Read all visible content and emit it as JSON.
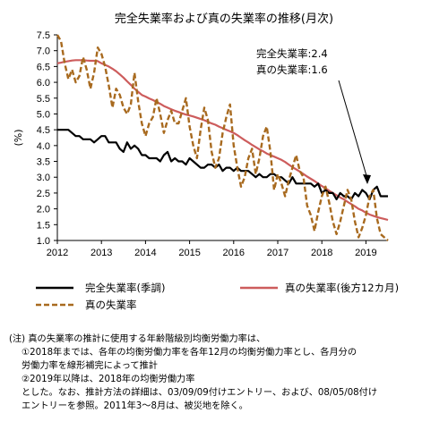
{
  "chart_data": {
    "type": "line",
    "title": "完全失業率および真の失業率の推移(月次)",
    "ylabel": "(%)",
    "ylim": [
      1.0,
      7.5
    ],
    "yticks": [
      "7.5",
      "7.0",
      "6.5",
      "6.0",
      "5.5",
      "5.0",
      "4.5",
      "4.0",
      "3.5",
      "3.0",
      "2.5",
      "2.0",
      "1.5",
      "1.0"
    ],
    "xlim": [
      "2012-01",
      "2019-07"
    ],
    "xticks": [
      "2012",
      "2013",
      "2014",
      "2015",
      "2016",
      "2017",
      "2018",
      "2019"
    ],
    "grid": false,
    "legend_position": "bottom",
    "series": [
      {
        "name": "完全失業率(季調)",
        "color": "#000000",
        "style": "solid",
        "x_start": "2012-01",
        "values": [
          4.5,
          4.5,
          4.5,
          4.5,
          4.4,
          4.3,
          4.3,
          4.2,
          4.2,
          4.2,
          4.1,
          4.2,
          4.3,
          4.3,
          4.1,
          4.1,
          4.1,
          3.9,
          3.8,
          4.1,
          3.9,
          4.0,
          3.9,
          3.7,
          3.7,
          3.6,
          3.6,
          3.6,
          3.5,
          3.7,
          3.8,
          3.5,
          3.6,
          3.5,
          3.5,
          3.4,
          3.6,
          3.5,
          3.4,
          3.3,
          3.3,
          3.4,
          3.4,
          3.3,
          3.4,
          3.2,
          3.3,
          3.3,
          3.2,
          3.3,
          3.2,
          3.2,
          3.2,
          3.1,
          3.0,
          3.1,
          3.0,
          3.0,
          3.1,
          3.1,
          3.0,
          3.0,
          2.9,
          2.8,
          3.0,
          2.8,
          2.8,
          2.8,
          2.8,
          2.8,
          2.7,
          2.8,
          2.5,
          2.6,
          2.5,
          2.5,
          2.3,
          2.5,
          2.4,
          2.4,
          2.3,
          2.5,
          2.4,
          2.6,
          2.5,
          2.3,
          2.6,
          2.7,
          2.4,
          2.4,
          2.4
        ]
      },
      {
        "name": "真の失業率(後方12カ月)",
        "color": "#cd5c5c",
        "style": "solid",
        "x_start": "2012-01",
        "values": [
          6.6,
          6.62,
          6.65,
          6.67,
          6.69,
          6.7,
          6.7,
          6.7,
          6.69,
          6.68,
          6.68,
          6.67,
          6.6,
          6.55,
          6.5,
          6.43,
          6.35,
          6.25,
          6.15,
          6.03,
          5.92,
          5.8,
          5.7,
          5.6,
          5.55,
          5.49,
          5.44,
          5.38,
          5.32,
          5.25,
          5.2,
          5.15,
          5.1,
          5.06,
          5.02,
          4.98,
          4.95,
          4.92,
          4.88,
          4.84,
          4.8,
          4.75,
          4.7,
          4.66,
          4.6,
          4.55,
          4.5,
          4.45,
          4.4,
          4.33,
          4.25,
          4.17,
          4.1,
          4.02,
          3.95,
          3.88,
          3.82,
          3.75,
          3.7,
          3.65,
          3.6,
          3.55,
          3.48,
          3.4,
          3.32,
          3.25,
          3.18,
          3.1,
          3.02,
          2.95,
          2.88,
          2.8,
          2.72,
          2.65,
          2.57,
          2.5,
          2.43,
          2.36,
          2.3,
          2.22,
          2.15,
          2.08,
          2.0,
          1.95,
          1.88,
          1.82,
          1.78,
          1.74,
          1.71,
          1.68,
          1.65
        ]
      },
      {
        "name": "真の失業率",
        "color": "#a86a1f",
        "style": "dashed",
        "x_start": "2012-01",
        "values": [
          7.5,
          7.3,
          6.6,
          6.1,
          6.4,
          6.0,
          6.2,
          6.8,
          6.4,
          5.8,
          6.3,
          7.1,
          6.9,
          6.5,
          5.9,
          5.2,
          5.8,
          5.6,
          5.2,
          5.0,
          5.3,
          6.3,
          5.4,
          4.7,
          4.3,
          4.7,
          4.9,
          5.5,
          5.0,
          4.4,
          4.8,
          5.1,
          4.7,
          4.7,
          5.1,
          5.5,
          4.6,
          4.0,
          3.6,
          4.5,
          5.2,
          4.8,
          3.8,
          3.3,
          3.6,
          4.4,
          4.9,
          5.3,
          4.0,
          3.3,
          2.7,
          3.0,
          3.6,
          3.9,
          3.1,
          3.6,
          4.3,
          4.6,
          3.8,
          2.6,
          3.1,
          2.8,
          2.4,
          2.9,
          3.3,
          3.7,
          3.2,
          3.0,
          2.1,
          1.8,
          1.3,
          1.9,
          2.4,
          2.7,
          2.2,
          1.6,
          1.2,
          1.6,
          2.1,
          2.6,
          2.3,
          1.6,
          1.1,
          1.4,
          1.8,
          2.4,
          2.6,
          1.7,
          1.2,
          1.1,
          1.0
        ]
      }
    ],
    "annotations": [
      {
        "text": "完全失業率:2.4"
      },
      {
        "text": "真の失業率:1.6"
      }
    ]
  },
  "legend": {
    "unemployment": "完全失業率(季調)",
    "true_trend": "真の失業率(後方12カ月)",
    "true_monthly": "真の失業率"
  },
  "notes": [
    "(注)  真の失業率の推計に使用する年齢階級別均衡労働力率は、",
    "①2018年までは、各年の均衡労働力率を各年12月の均衡労働力率とし、各月分の",
    "労働力率を線形補完によって推計",
    "②2019年以降は、2018年の均衡労働力率",
    "とした。なお、推計方法の詳細は、03/09/09付けエントリー、および、08/05/08付け",
    "エントリーを参照。2011年3～8月は、被災地を除く。"
  ]
}
